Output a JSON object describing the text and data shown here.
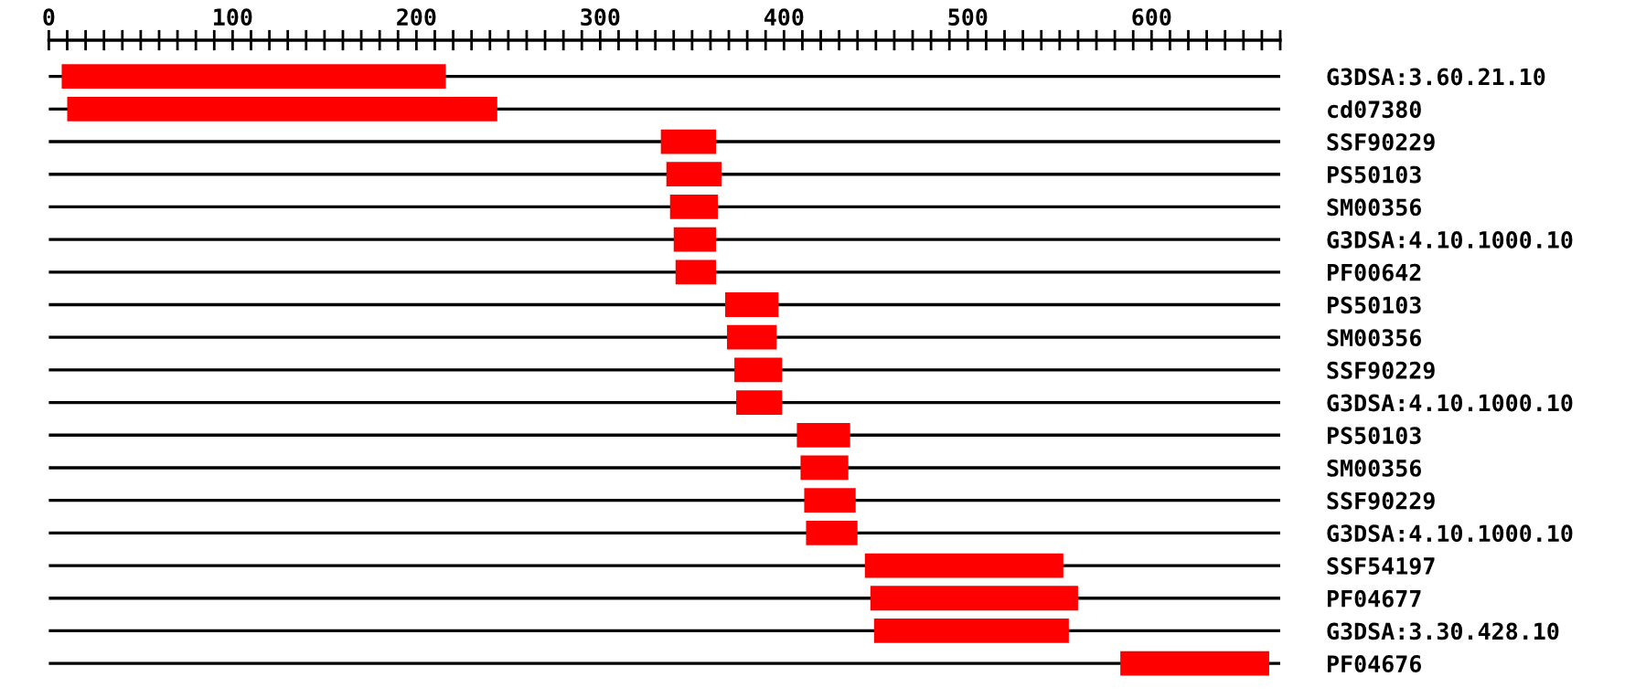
{
  "chart_data": {
    "type": "bar",
    "orientation": "horizontal",
    "categories": [
      "G3DSA:3.60.21.10",
      "cd07380",
      "SSF90229",
      "PS50103",
      "SM00356",
      "G3DSA:4.10.1000.10",
      "PF00642",
      "PS50103",
      "SM00356",
      "SSF90229",
      "G3DSA:4.10.1000.10",
      "PS50103",
      "SM00356",
      "SSF90229",
      "G3DSA:4.10.1000.10",
      "SSF54197",
      "PF04677",
      "G3DSA:3.30.428.10",
      "PF04676"
    ],
    "base": [
      7,
      10,
      333,
      336,
      338,
      340,
      341,
      368,
      369,
      373,
      374,
      407,
      409,
      411,
      412,
      444,
      447,
      449,
      583
    ],
    "values": [
      209,
      234,
      30,
      30,
      26,
      23,
      22,
      29,
      27,
      26,
      25,
      29,
      26,
      28,
      28,
      108,
      113,
      106,
      81
    ],
    "color": "#ff0000",
    "xlim": [
      0,
      670
    ],
    "xticks": [
      0,
      {
        "value": 10,
        "label": null
      },
      {
        "value": 20,
        "label": null
      },
      {
        "value": 30,
        "label": null
      },
      {
        "value": 40,
        "label": null
      },
      {
        "value": 50,
        "label": null
      },
      {
        "value": 60,
        "label": null
      },
      {
        "value": 70,
        "label": null
      },
      {
        "value": 80,
        "label": null
      },
      {
        "value": 90,
        "label": null
      },
      100,
      {
        "value": 110,
        "label": null
      },
      {
        "value": 120,
        "label": null
      },
      {
        "value": 130,
        "label": null
      },
      {
        "value": 140,
        "label": null
      },
      {
        "value": 150,
        "label": null
      },
      {
        "value": 160,
        "label": null
      },
      {
        "value": 170,
        "label": null
      },
      {
        "value": 180,
        "label": null
      },
      {
        "value": 190,
        "label": null
      },
      200,
      {
        "value": 210,
        "label": null
      },
      {
        "value": 220,
        "label": null
      },
      {
        "value": 230,
        "label": null
      },
      {
        "value": 240,
        "label": null
      },
      {
        "value": 250,
        "label": null
      },
      {
        "value": 260,
        "label": null
      },
      {
        "value": 270,
        "label": null
      },
      {
        "value": 280,
        "label": null
      },
      {
        "value": 290,
        "label": null
      },
      300,
      {
        "value": 310,
        "label": null
      },
      {
        "value": 320,
        "label": null
      },
      {
        "value": 330,
        "label": null
      },
      {
        "value": 340,
        "label": null
      },
      {
        "value": 350,
        "label": null
      },
      {
        "value": 360,
        "label": null
      },
      {
        "value": 370,
        "label": null
      },
      {
        "value": 380,
        "label": null
      },
      {
        "value": 390,
        "label": null
      },
      400,
      {
        "value": 410,
        "label": null
      },
      {
        "value": 420,
        "label": null
      },
      {
        "value": 430,
        "label": null
      },
      {
        "value": 440,
        "label": null
      },
      {
        "value": 450,
        "label": null
      },
      {
        "value": 460,
        "label": null
      },
      {
        "value": 470,
        "label": null
      },
      {
        "value": 480,
        "label": null
      },
      {
        "value": 490,
        "label": null
      },
      500,
      {
        "value": 510,
        "label": null
      },
      {
        "value": 520,
        "label": null
      },
      {
        "value": 530,
        "label": null
      },
      {
        "value": 540,
        "label": null
      },
      {
        "value": 550,
        "label": null
      },
      {
        "value": 560,
        "label": null
      },
      {
        "value": 570,
        "label": null
      },
      {
        "value": 580,
        "label": null
      },
      {
        "value": 590,
        "label": null
      },
      600,
      {
        "value": 610,
        "label": null
      },
      {
        "value": 620,
        "label": null
      },
      {
        "value": 630,
        "label": null
      },
      {
        "value": 640,
        "label": null
      },
      {
        "value": 650,
        "label": null
      },
      {
        "value": 660,
        "label": null
      },
      {
        "value": 670,
        "label": null
      }
    ],
    "grid": "y"
  }
}
